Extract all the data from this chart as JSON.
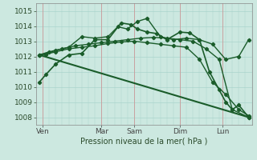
{
  "xlabel": "Pression niveau de la mer( hPa )",
  "background_color": "#cce8e0",
  "grid_color": "#aad4cc",
  "line_color": "#1a5c2a",
  "xlim": [
    0,
    33
  ],
  "ylim": [
    1007.5,
    1015.5
  ],
  "yticks": [
    1008,
    1009,
    1010,
    1011,
    1012,
    1013,
    1014,
    1015
  ],
  "xtick_positions": [
    1,
    10,
    15,
    22,
    28.5
  ],
  "xtick_labels": [
    "Ven",
    "Mar",
    "Sam",
    "Dim",
    "Lun"
  ],
  "vlines": [
    1,
    10,
    15,
    22,
    28.5
  ],
  "series": [
    {
      "x": [
        0.5,
        1.5,
        3,
        5,
        7,
        9,
        11,
        12.5,
        14,
        15.5,
        17,
        19,
        21,
        23,
        25,
        27,
        29,
        31,
        32.5
      ],
      "y": [
        1012.1,
        1012.15,
        1012.4,
        1012.6,
        1013.3,
        1013.2,
        1013.3,
        1013.95,
        1013.8,
        1014.3,
        1014.5,
        1013.3,
        1013.1,
        1013.2,
        1013.1,
        1012.8,
        1011.8,
        1012.0,
        1013.1
      ]
    },
    {
      "x": [
        0.5,
        1.5,
        3,
        5,
        7,
        9,
        11,
        13,
        15,
        17,
        19,
        21,
        23,
        25,
        27,
        29,
        31,
        32.5
      ],
      "y": [
        1012.1,
        1012.15,
        1012.3,
        1012.5,
        1012.6,
        1012.7,
        1012.85,
        1012.95,
        1013.0,
        1012.9,
        1012.8,
        1012.7,
        1012.6,
        1011.8,
        1010.3,
        1009.5,
        1008.5,
        1008.1
      ]
    },
    {
      "x": [
        0.5,
        32.5
      ],
      "y": [
        1012.1,
        1008.0
      ]
    },
    {
      "x": [
        0.5,
        2,
        4,
        6,
        8,
        10,
        12,
        14,
        16,
        18,
        20,
        22,
        24,
        26,
        28,
        30,
        32.5
      ],
      "y": [
        1012.1,
        1012.3,
        1012.5,
        1012.7,
        1012.8,
        1012.9,
        1013.0,
        1013.1,
        1013.2,
        1013.25,
        1013.2,
        1013.1,
        1013.0,
        1012.5,
        1011.8,
        1008.5,
        1008.0
      ]
    },
    {
      "x": [
        0.5,
        1.5,
        3,
        5,
        7,
        9,
        11,
        13,
        14.5,
        15.5,
        17,
        18.5,
        20,
        22,
        23.5,
        25,
        26.5,
        28,
        29,
        30,
        31,
        32.5
      ],
      "y": [
        1010.3,
        1010.8,
        1011.5,
        1012.1,
        1012.2,
        1013.1,
        1013.1,
        1014.2,
        1014.1,
        1013.8,
        1013.6,
        1013.5,
        1013.1,
        1013.6,
        1013.55,
        1013.1,
        1011.0,
        1009.8,
        1009.0,
        1008.5,
        1008.8,
        1008.0
      ]
    }
  ]
}
